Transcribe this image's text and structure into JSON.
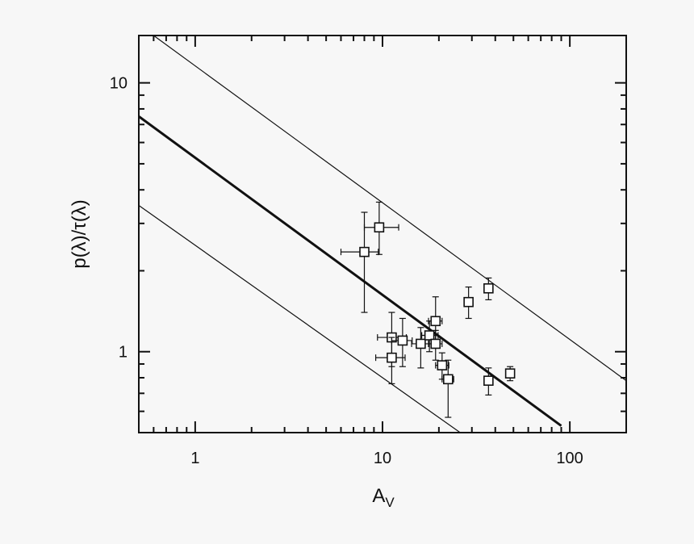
{
  "chart_data": {
    "type": "scatter",
    "title": "",
    "xlabel": "A",
    "xlabel_sub": "V",
    "ylabel": "p(λ)/τ(λ)",
    "x_scale": "log",
    "y_scale": "log",
    "xlim": [
      0.5,
      200
    ],
    "ylim": [
      0.5,
      15
    ],
    "x_ticks": [
      {
        "value": 1,
        "label": "1"
      },
      {
        "value": 10,
        "label": "10"
      },
      {
        "value": 100,
        "label": "100"
      }
    ],
    "y_ticks": [
      {
        "value": 1,
        "label": "1"
      },
      {
        "value": 10,
        "label": "10"
      }
    ],
    "grid": false,
    "points": [
      {
        "x": 8.0,
        "y": 2.35,
        "xerr": [
          6.0,
          9.5
        ],
        "yerr": [
          1.4,
          3.3
        ]
      },
      {
        "x": 9.6,
        "y": 2.9,
        "xerr": [
          8.0,
          12.2
        ],
        "yerr": [
          2.3,
          3.6
        ]
      },
      {
        "x": 11.2,
        "y": 1.13,
        "xerr": [
          9.4,
          13.4
        ],
        "yerr": [
          0.88,
          1.4
        ]
      },
      {
        "x": 11.2,
        "y": 0.95,
        "xerr": [
          9.2,
          13.2
        ],
        "yerr": [
          0.76,
          1.13
        ]
      },
      {
        "x": 12.8,
        "y": 1.1,
        "xerr": [
          11.2,
          14.4
        ],
        "yerr": [
          0.88,
          1.33
        ]
      },
      {
        "x": 16.0,
        "y": 1.07,
        "xerr": [
          14.3,
          17.6
        ],
        "yerr": [
          0.87,
          1.23
        ]
      },
      {
        "x": 17.8,
        "y": 1.15,
        "xerr": [
          16.2,
          19.8
        ],
        "yerr": [
          1.0,
          1.3
        ]
      },
      {
        "x": 19.2,
        "y": 1.3,
        "xerr": [
          17.6,
          20.8
        ],
        "yerr": [
          1.1,
          1.6
        ]
      },
      {
        "x": 19.2,
        "y": 1.07,
        "xerr": [
          17.6,
          20.8
        ],
        "yerr": [
          0.93,
          1.2
        ]
      },
      {
        "x": 20.8,
        "y": 0.89,
        "xerr": [
          19.2,
          22.6
        ],
        "yerr": [
          0.79,
          0.99
        ]
      },
      {
        "x": 22.4,
        "y": 0.79,
        "xerr": [
          20.8,
          24.0
        ],
        "yerr": [
          0.57,
          0.93
        ]
      },
      {
        "x": 28.8,
        "y": 1.53,
        "xerr": [
          27.8,
          29.8
        ],
        "yerr": [
          1.33,
          1.74
        ]
      },
      {
        "x": 36.8,
        "y": 1.72,
        "xerr": [
          35.2,
          38.4
        ],
        "yerr": [
          1.56,
          1.88
        ]
      },
      {
        "x": 36.8,
        "y": 0.78,
        "xerr": [
          35.2,
          38.4
        ],
        "yerr": [
          0.69,
          0.87
        ]
      },
      {
        "x": 48.0,
        "y": 0.83,
        "xerr": [
          46.4,
          49.6
        ],
        "yerr": [
          0.78,
          0.88
        ]
      }
    ],
    "lines": [
      {
        "style": "thick",
        "x": [
          0.5,
          90
        ],
        "y": [
          7.5,
          0.53
        ]
      },
      {
        "style": "thin",
        "x": [
          0.6,
          200
        ],
        "y": [
          15.0,
          0.78
        ]
      },
      {
        "style": "thin",
        "x": [
          0.5,
          26.0
        ],
        "y": [
          3.5,
          0.5
        ]
      }
    ]
  }
}
